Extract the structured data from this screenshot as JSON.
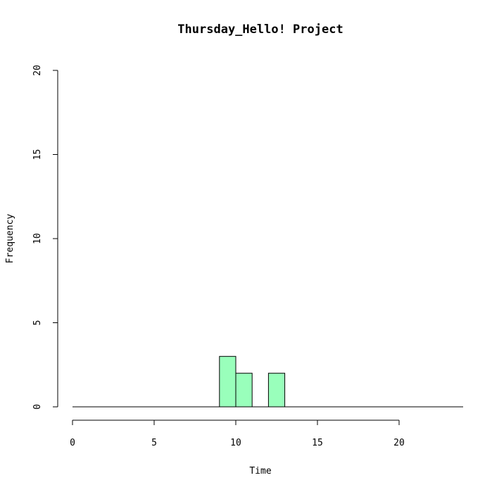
{
  "chart_data": {
    "type": "bar",
    "title": "Thursday_Hello! Project",
    "xlabel": "Time",
    "ylabel": "Frequency",
    "xlim": [
      0,
      24
    ],
    "ylim": [
      0,
      20
    ],
    "x_ticks": [
      0,
      5,
      10,
      15,
      20
    ],
    "y_ticks": [
      0,
      5,
      10,
      15,
      20
    ],
    "bins": [
      {
        "start": 9,
        "end": 10,
        "count": 3
      },
      {
        "start": 10,
        "end": 11,
        "count": 2
      },
      {
        "start": 12,
        "end": 13,
        "count": 2
      }
    ],
    "bar_color": "#99ffbb",
    "grid": false,
    "legend": "none"
  }
}
